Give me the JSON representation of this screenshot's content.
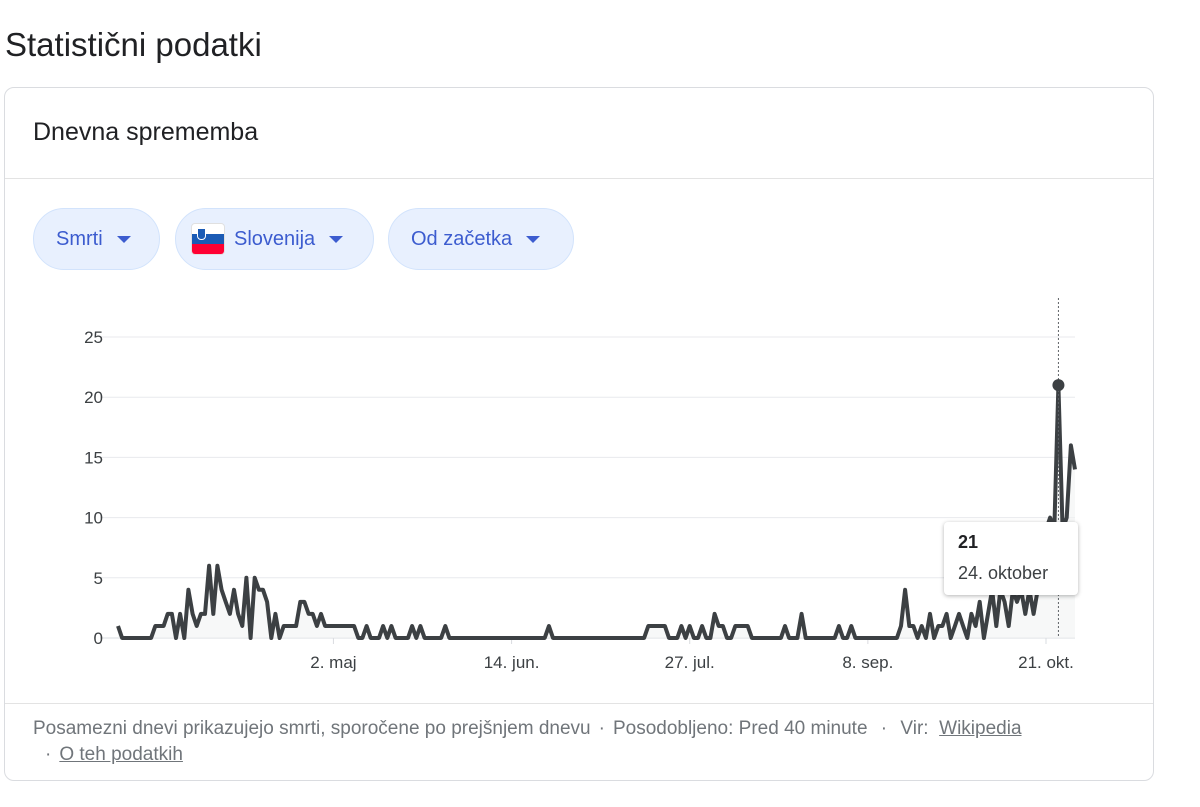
{
  "page_title": "Statistični podatki",
  "card": {
    "title": "Dnevna sprememba",
    "filters": [
      {
        "label": "Smrti",
        "icon": "caret-down-icon"
      },
      {
        "label": "Slovenija",
        "icon": "slovenia-flag-icon",
        "flag_colors": [
          "#ffffff",
          "#1b5bb5",
          "#ff0033"
        ]
      },
      {
        "label": "Od začetka",
        "icon": "caret-down-icon"
      }
    ]
  },
  "tooltip": {
    "value": "21",
    "date": "24. oktober"
  },
  "footer": {
    "note": "Posamezni dnevi prikazujejo smrti, sporočene po prejšnjem dnevu",
    "updated": "Posodobljeno: Pred 40 minute",
    "source_label": "Vir:",
    "source_link": "Wikipedia",
    "about_link": "O teh podatkih"
  },
  "colors": {
    "line": "#3c4043",
    "pill_bg": "#e8f0fe",
    "pill_text": "#3c5ccf",
    "grid": "#e8eaed"
  },
  "chart_data": {
    "type": "area",
    "title": "",
    "xlabel": "",
    "ylabel": "",
    "ylim": [
      0,
      25
    ],
    "yticks": [
      0,
      5,
      10,
      15,
      20,
      25
    ],
    "xticks": [
      {
        "date": "2020-05-02",
        "label": "2. maj"
      },
      {
        "date": "2020-06-14",
        "label": "14. jun."
      },
      {
        "date": "2020-07-27",
        "label": "27. jul."
      },
      {
        "date": "2020-09-08",
        "label": "8. sep."
      },
      {
        "date": "2020-10-21",
        "label": "21. okt."
      }
    ],
    "grid": true,
    "highlight": {
      "date": "2020-10-24",
      "value": 21
    },
    "series": [
      {
        "x": [
          "2020-03-11",
          "2020-03-12",
          "2020-03-13",
          "2020-03-14",
          "2020-03-15",
          "2020-03-16",
          "2020-03-17",
          "2020-03-18",
          "2020-03-19",
          "2020-03-20",
          "2020-03-21",
          "2020-03-22",
          "2020-03-23",
          "2020-03-24",
          "2020-03-25",
          "2020-03-26",
          "2020-03-27",
          "2020-03-28",
          "2020-03-29",
          "2020-03-30",
          "2020-03-31",
          "2020-04-01",
          "2020-04-02",
          "2020-04-03",
          "2020-04-04",
          "2020-04-05",
          "2020-04-06",
          "2020-04-07",
          "2020-04-08",
          "2020-04-09",
          "2020-04-10",
          "2020-04-11",
          "2020-04-12",
          "2020-04-13",
          "2020-04-14",
          "2020-04-15",
          "2020-04-16",
          "2020-04-17",
          "2020-04-18",
          "2020-04-19",
          "2020-04-20",
          "2020-04-21",
          "2020-04-22",
          "2020-04-23",
          "2020-04-24",
          "2020-04-25",
          "2020-04-26",
          "2020-04-27",
          "2020-04-28",
          "2020-04-29",
          "2020-04-30",
          "2020-05-01",
          "2020-05-02",
          "2020-05-03",
          "2020-05-04",
          "2020-05-05",
          "2020-05-06",
          "2020-05-07",
          "2020-05-08",
          "2020-05-09",
          "2020-05-10",
          "2020-05-11",
          "2020-05-12",
          "2020-05-13",
          "2020-05-14",
          "2020-05-15",
          "2020-05-16",
          "2020-05-17",
          "2020-05-18",
          "2020-05-19",
          "2020-05-20",
          "2020-05-21",
          "2020-05-22",
          "2020-05-23",
          "2020-05-24",
          "2020-05-25",
          "2020-05-26",
          "2020-05-27",
          "2020-05-28",
          "2020-05-29",
          "2020-05-30",
          "2020-05-31",
          "2020-06-01",
          "2020-06-02",
          "2020-06-03",
          "2020-06-04",
          "2020-06-05",
          "2020-06-06",
          "2020-06-07",
          "2020-06-08",
          "2020-06-09",
          "2020-06-10",
          "2020-06-11",
          "2020-06-12",
          "2020-06-13",
          "2020-06-14",
          "2020-06-15",
          "2020-06-16",
          "2020-06-17",
          "2020-06-18",
          "2020-06-19",
          "2020-06-20",
          "2020-06-21",
          "2020-06-22",
          "2020-06-23",
          "2020-06-24",
          "2020-06-25",
          "2020-06-26",
          "2020-06-27",
          "2020-06-28",
          "2020-06-29",
          "2020-06-30",
          "2020-07-01",
          "2020-07-02",
          "2020-07-03",
          "2020-07-04",
          "2020-07-05",
          "2020-07-06",
          "2020-07-07",
          "2020-07-08",
          "2020-07-09",
          "2020-07-10",
          "2020-07-11",
          "2020-07-12",
          "2020-07-13",
          "2020-07-14",
          "2020-07-15",
          "2020-07-16",
          "2020-07-17",
          "2020-07-18",
          "2020-07-19",
          "2020-07-20",
          "2020-07-21",
          "2020-07-22",
          "2020-07-23",
          "2020-07-24",
          "2020-07-25",
          "2020-07-26",
          "2020-07-27",
          "2020-07-28",
          "2020-07-29",
          "2020-07-30",
          "2020-07-31",
          "2020-08-01",
          "2020-08-02",
          "2020-08-03",
          "2020-08-04",
          "2020-08-05",
          "2020-08-06",
          "2020-08-07",
          "2020-08-08",
          "2020-08-09",
          "2020-08-10",
          "2020-08-11",
          "2020-08-12",
          "2020-08-13",
          "2020-08-14",
          "2020-08-15",
          "2020-08-16",
          "2020-08-17",
          "2020-08-18",
          "2020-08-19",
          "2020-08-20",
          "2020-08-21",
          "2020-08-22",
          "2020-08-23",
          "2020-08-24",
          "2020-08-25",
          "2020-08-26",
          "2020-08-27",
          "2020-08-28",
          "2020-08-29",
          "2020-08-30",
          "2020-08-31",
          "2020-09-01",
          "2020-09-02",
          "2020-09-03",
          "2020-09-04",
          "2020-09-05",
          "2020-09-06",
          "2020-09-07",
          "2020-09-08",
          "2020-09-09",
          "2020-09-10",
          "2020-09-11",
          "2020-09-12",
          "2020-09-13",
          "2020-09-14",
          "2020-09-15",
          "2020-09-16",
          "2020-09-17",
          "2020-09-18",
          "2020-09-19",
          "2020-09-20",
          "2020-09-21",
          "2020-09-22",
          "2020-09-23",
          "2020-09-24",
          "2020-09-25",
          "2020-09-26",
          "2020-09-27",
          "2020-09-28",
          "2020-09-29",
          "2020-09-30",
          "2020-10-01",
          "2020-10-02",
          "2020-10-03",
          "2020-10-04",
          "2020-10-05",
          "2020-10-06",
          "2020-10-07",
          "2020-10-08",
          "2020-10-09",
          "2020-10-10",
          "2020-10-11",
          "2020-10-12",
          "2020-10-13",
          "2020-10-14",
          "2020-10-15",
          "2020-10-16",
          "2020-10-17",
          "2020-10-18",
          "2020-10-19",
          "2020-10-20",
          "2020-10-21",
          "2020-10-22",
          "2020-10-23",
          "2020-10-24",
          "2020-10-25",
          "2020-10-26",
          "2020-10-27",
          "2020-10-28"
        ],
        "values": [
          1,
          0,
          0,
          0,
          0,
          0,
          0,
          0,
          0,
          1,
          1,
          1,
          2,
          2,
          0,
          2,
          0,
          4,
          2,
          1,
          2,
          2,
          6,
          2,
          6,
          4,
          3,
          2,
          4,
          2,
          1,
          5,
          0,
          5,
          4,
          4,
          3,
          0,
          2,
          0,
          1,
          1,
          1,
          1,
          3,
          3,
          2,
          2,
          1,
          2,
          1,
          1,
          1,
          1,
          1,
          1,
          1,
          1,
          0,
          0,
          1,
          0,
          0,
          0,
          1,
          0,
          1,
          0,
          0,
          0,
          0,
          1,
          0,
          1,
          0,
          0,
          0,
          0,
          0,
          1,
          0,
          0,
          0,
          0,
          0,
          0,
          0,
          0,
          0,
          0,
          0,
          0,
          0,
          0,
          0,
          0,
          0,
          0,
          0,
          0,
          0,
          0,
          0,
          0,
          1,
          0,
          0,
          0,
          0,
          0,
          0,
          0,
          0,
          0,
          0,
          0,
          0,
          0,
          0,
          0,
          0,
          0,
          0,
          0,
          0,
          0,
          0,
          0,
          1,
          1,
          1,
          1,
          1,
          0,
          0,
          0,
          1,
          0,
          1,
          0,
          0,
          1,
          0,
          0,
          2,
          1,
          1,
          0,
          0,
          1,
          1,
          1,
          1,
          0,
          0,
          0,
          0,
          0,
          0,
          0,
          0,
          1,
          0,
          0,
          0,
          2,
          0,
          0,
          0,
          0,
          0,
          0,
          0,
          0,
          1,
          0,
          0,
          1,
          0,
          0,
          0,
          0,
          0,
          0,
          0,
          0,
          0,
          0,
          0,
          1,
          4,
          1,
          1,
          0,
          1,
          0,
          2,
          0,
          1,
          1,
          2,
          0,
          1,
          2,
          1,
          0,
          2,
          1,
          3,
          0,
          2,
          4,
          1,
          4,
          3,
          1,
          4,
          3,
          4,
          2,
          4,
          2,
          4,
          6,
          9,
          10,
          9,
          21,
          9,
          10,
          16,
          14
        ]
      }
    ]
  }
}
